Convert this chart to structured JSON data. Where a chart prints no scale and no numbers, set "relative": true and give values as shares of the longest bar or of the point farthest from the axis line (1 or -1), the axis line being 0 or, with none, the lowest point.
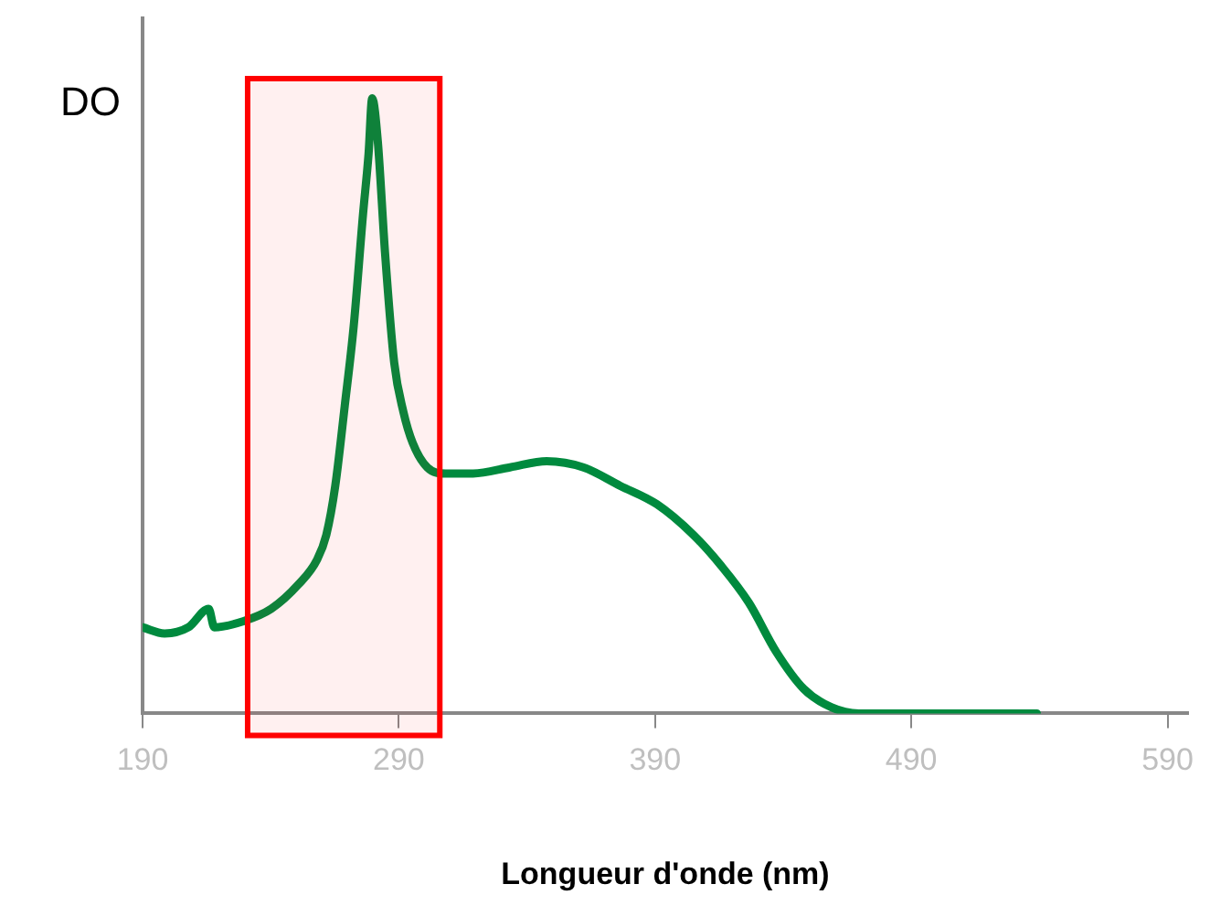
{
  "chart_data": {
    "type": "line",
    "xlabel": "Longueur d'onde (nm)",
    "ylabel": "DO",
    "relative": true,
    "xlim": [
      190,
      598
    ],
    "xticks": [
      190,
      290,
      390,
      490,
      590
    ],
    "grid": false,
    "legend": false,
    "marker": "none",
    "line_style": "solid",
    "series": [
      {
        "color": "#008a3e",
        "x": [
          190,
          198.6,
          207.9,
          215.8,
          218,
          229.4,
          240.2,
          250.9,
          258.1,
          261.7,
          265.2,
          268.9,
          272.4,
          276,
          278.2,
          279.6,
          281.8,
          284.6,
          288.2,
          291.8,
          295.4,
          301.1,
          308.3,
          319,
          333.4,
          347.7,
          362,
          376.4,
          390.7,
          405,
          415.8,
          426.6,
          437.3,
          448,
          458.8,
          469.6,
          483.9,
          498.2,
          512.6,
          539
        ],
        "values": [
          0.14,
          0.13,
          0.14,
          0.17,
          0.14,
          0.15,
          0.17,
          0.21,
          0.25,
          0.29,
          0.37,
          0.5,
          0.63,
          0.81,
          0.91,
          1,
          0.93,
          0.75,
          0.57,
          0.49,
          0.44,
          0.4,
          0.39,
          0.39,
          0.4,
          0.41,
          0.4,
          0.37,
          0.34,
          0.29,
          0.24,
          0.18,
          0.1,
          0.04,
          0.01,
          0,
          0,
          0,
          0,
          0
        ]
      }
    ],
    "bands": [
      {
        "axis": "x",
        "from": 231,
        "to": 306,
        "color": "#ff0000"
      }
    ]
  }
}
